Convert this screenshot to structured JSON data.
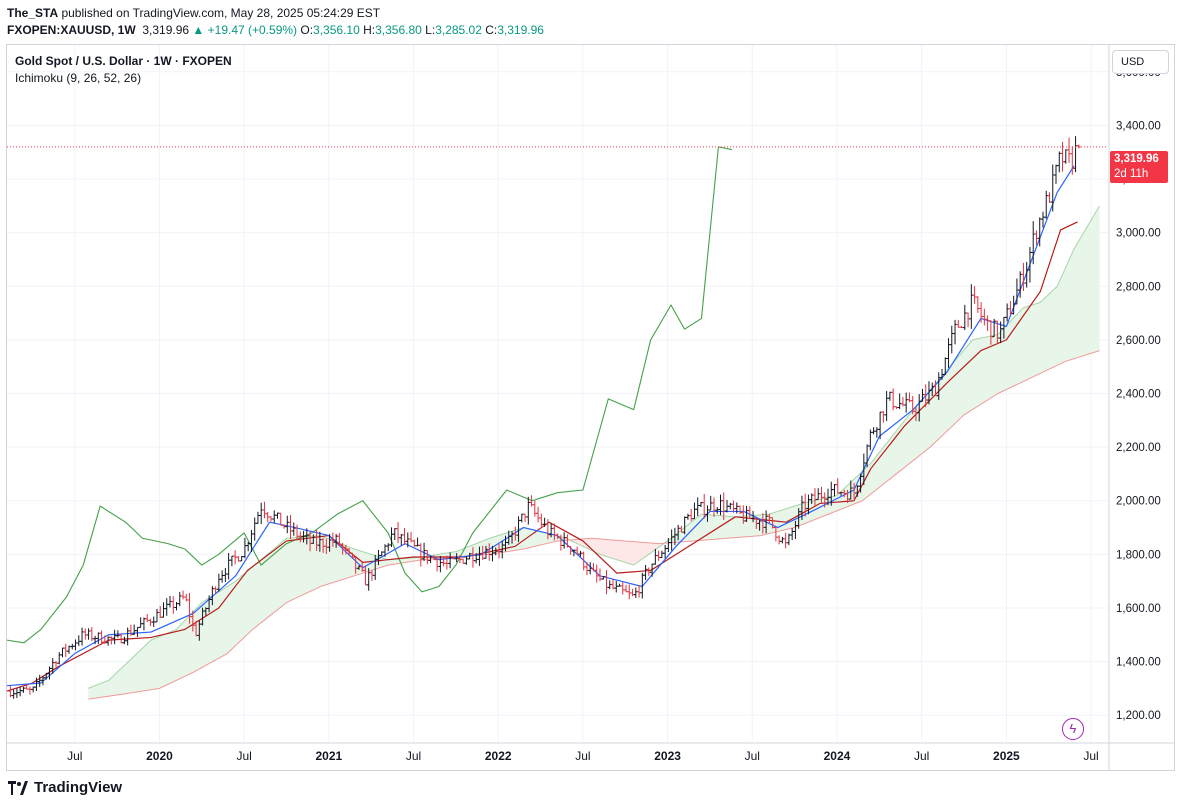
{
  "header": {
    "line1_user": "The_STA",
    "line1_rest": " published on TradingView.com, May 28, 2025 05:24:29 EST",
    "symbol": "FXOPEN:XAUUSD, 1W",
    "last": "3,319.96",
    "change": "▲ +19.47 (+0.59%)",
    "o_label": "O:",
    "o": "3,356.10",
    "h_label": "H:",
    "h": "3,356.80",
    "l_label": "L:",
    "l": "3,285.02",
    "c_label": "C:",
    "c": "3,319.96"
  },
  "legend": {
    "title": "Gold Spot / U.S. Dollar · 1W · FXOPEN",
    "indicator": "Ichimoku (9, 26, 52, 26)"
  },
  "currency": "USD",
  "price_tag": {
    "price": "3,319.96",
    "countdown": "2d 11h"
  },
  "brand": "TradingView",
  "colors": {
    "up": "#131722",
    "down": "#e0313f",
    "conversion": "#2962ff",
    "base": "#b71c1c",
    "lagging": "#43a047",
    "span_a": "#a5d6a7",
    "span_b": "#ef9a9a",
    "cloud_up": "#e8f5e9",
    "cloud_down": "#fde7e7",
    "last_price": "#f23645"
  },
  "chart_data": {
    "type": "candlestick",
    "title": "Gold Spot / U.S. Dollar · 1W · FXOPEN",
    "ylim": [
      1100,
      3700
    ],
    "y_ticks": [
      1200,
      1400,
      1600,
      1800,
      2000,
      2200,
      2400,
      2600,
      2800,
      3000,
      3200,
      3400,
      3600
    ],
    "y_tick_labels": [
      "1,200.00",
      "1,400.00",
      "1,600.00",
      "1,800.00",
      "2,000.00",
      "2,200.00",
      "2,400.00",
      "2,600.00",
      "2,800.00",
      "3,000.00",
      "3,200.00",
      "3,400.00",
      "3,600.00"
    ],
    "x_ticks": [
      {
        "t": 2019.5,
        "label": "Jul"
      },
      {
        "t": 2020.0,
        "label": "2020"
      },
      {
        "t": 2020.5,
        "label": "Jul"
      },
      {
        "t": 2021.0,
        "label": "2021"
      },
      {
        "t": 2021.5,
        "label": "Jul"
      },
      {
        "t": 2022.0,
        "label": "2022"
      },
      {
        "t": 2022.5,
        "label": "Jul"
      },
      {
        "t": 2023.0,
        "label": "2023"
      },
      {
        "t": 2023.5,
        "label": "Jul"
      },
      {
        "t": 2024.0,
        "label": "2024"
      },
      {
        "t": 2024.5,
        "label": "Jul"
      },
      {
        "t": 2025.0,
        "label": "2025"
      },
      {
        "t": 2025.5,
        "label": "Jul"
      }
    ],
    "xlim": [
      2019.1,
      2025.6
    ],
    "last_price": 3319.96,
    "price_path": [
      [
        2019.12,
        1290
      ],
      [
        2019.25,
        1290
      ],
      [
        2019.4,
        1420
      ],
      [
        2019.55,
        1500
      ],
      [
        2019.75,
        1480
      ],
      [
        2019.95,
        1560
      ],
      [
        2020.15,
        1640
      ],
      [
        2020.21,
        1500
      ],
      [
        2020.35,
        1720
      ],
      [
        2020.5,
        1820
      ],
      [
        2020.6,
        1980
      ],
      [
        2020.75,
        1900
      ],
      [
        2020.9,
        1840
      ],
      [
        2021.05,
        1850
      ],
      [
        2021.15,
        1760
      ],
      [
        2021.22,
        1700
      ],
      [
        2021.38,
        1880
      ],
      [
        2021.55,
        1800
      ],
      [
        2021.7,
        1760
      ],
      [
        2021.85,
        1800
      ],
      [
        2022.05,
        1830
      ],
      [
        2022.18,
        1980
      ],
      [
        2022.3,
        1880
      ],
      [
        2022.45,
        1820
      ],
      [
        2022.55,
        1730
      ],
      [
        2022.65,
        1680
      ],
      [
        2022.8,
        1640
      ],
      [
        2022.9,
        1760
      ],
      [
        2023.05,
        1880
      ],
      [
        2023.15,
        1960
      ],
      [
        2023.3,
        1990
      ],
      [
        2023.45,
        1940
      ],
      [
        2023.6,
        1920
      ],
      [
        2023.7,
        1830
      ],
      [
        2023.8,
        1980
      ],
      [
        2023.95,
        2040
      ],
      [
        2024.1,
        2030
      ],
      [
        2024.2,
        2250
      ],
      [
        2024.3,
        2380
      ],
      [
        2024.45,
        2340
      ],
      [
        2024.58,
        2420
      ],
      [
        2024.7,
        2640
      ],
      [
        2024.8,
        2740
      ],
      [
        2024.88,
        2660
      ],
      [
        2024.96,
        2620
      ],
      [
        2025.05,
        2760
      ],
      [
        2025.12,
        2880
      ],
      [
        2025.18,
        3020
      ],
      [
        2025.26,
        3150
      ],
      [
        2025.32,
        3280
      ],
      [
        2025.38,
        3260
      ],
      [
        2025.42,
        3320
      ]
    ],
    "tenkan": [
      [
        2019.1,
        1310
      ],
      [
        2019.3,
        1320
      ],
      [
        2019.5,
        1430
      ],
      [
        2019.7,
        1500
      ],
      [
        2019.95,
        1510
      ],
      [
        2020.2,
        1580
      ],
      [
        2020.45,
        1720
      ],
      [
        2020.65,
        1920
      ],
      [
        2020.8,
        1900
      ],
      [
        2021.0,
        1870
      ],
      [
        2021.2,
        1750
      ],
      [
        2021.45,
        1840
      ],
      [
        2021.65,
        1780
      ],
      [
        2021.9,
        1800
      ],
      [
        2022.15,
        1900
      ],
      [
        2022.35,
        1870
      ],
      [
        2022.6,
        1720
      ],
      [
        2022.85,
        1680
      ],
      [
        2023.05,
        1830
      ],
      [
        2023.25,
        1960
      ],
      [
        2023.45,
        1960
      ],
      [
        2023.65,
        1900
      ],
      [
        2023.85,
        1960
      ],
      [
        2024.1,
        2040
      ],
      [
        2024.25,
        2240
      ],
      [
        2024.45,
        2340
      ],
      [
        2024.65,
        2480
      ],
      [
        2024.85,
        2680
      ],
      [
        2025.0,
        2650
      ],
      [
        2025.15,
        2900
      ],
      [
        2025.3,
        3150
      ],
      [
        2025.4,
        3250
      ]
    ],
    "kijun": [
      [
        2019.1,
        1290
      ],
      [
        2019.25,
        1320
      ],
      [
        2019.4,
        1380
      ],
      [
        2019.7,
        1480
      ],
      [
        2019.95,
        1490
      ],
      [
        2020.15,
        1520
      ],
      [
        2020.35,
        1600
      ],
      [
        2020.52,
        1740
      ],
      [
        2020.75,
        1850
      ],
      [
        2021.0,
        1870
      ],
      [
        2021.2,
        1770
      ],
      [
        2021.5,
        1790
      ],
      [
        2021.8,
        1790
      ],
      [
        2022.1,
        1830
      ],
      [
        2022.3,
        1920
      ],
      [
        2022.5,
        1850
      ],
      [
        2022.7,
        1730
      ],
      [
        2022.9,
        1740
      ],
      [
        2023.1,
        1820
      ],
      [
        2023.4,
        1940
      ],
      [
        2023.7,
        1920
      ],
      [
        2023.9,
        1990
      ],
      [
        2024.1,
        2000
      ],
      [
        2024.2,
        2120
      ],
      [
        2024.4,
        2280
      ],
      [
        2024.65,
        2440
      ],
      [
        2024.85,
        2560
      ],
      [
        2025.0,
        2600
      ],
      [
        2025.2,
        2780
      ],
      [
        2025.32,
        3010
      ],
      [
        2025.42,
        3040
      ]
    ],
    "chikou": [
      [
        2019.1,
        1480
      ],
      [
        2019.2,
        1470
      ],
      [
        2019.3,
        1520
      ],
      [
        2019.45,
        1640
      ],
      [
        2019.55,
        1760
      ],
      [
        2019.65,
        1980
      ],
      [
        2019.8,
        1920
      ],
      [
        2019.9,
        1860
      ],
      [
        2020.05,
        1840
      ],
      [
        2020.15,
        1820
      ],
      [
        2020.25,
        1760
      ],
      [
        2020.35,
        1800
      ],
      [
        2020.5,
        1880
      ],
      [
        2020.6,
        1760
      ],
      [
        2020.75,
        1840
      ],
      [
        2020.9,
        1880
      ],
      [
        2021.05,
        1950
      ],
      [
        2021.2,
        2000
      ],
      [
        2021.35,
        1880
      ],
      [
        2021.45,
        1730
      ],
      [
        2021.55,
        1660
      ],
      [
        2021.65,
        1680
      ],
      [
        2021.75,
        1760
      ],
      [
        2021.85,
        1880
      ],
      [
        2022.05,
        2040
      ],
      [
        2022.2,
        2000
      ],
      [
        2022.35,
        2030
      ],
      [
        2022.5,
        2040
      ],
      [
        2022.65,
        2380
      ],
      [
        2022.8,
        2340
      ],
      [
        2022.9,
        2600
      ],
      [
        2023.02,
        2730
      ],
      [
        2023.1,
        2640
      ],
      [
        2023.2,
        2680
      ],
      [
        2023.3,
        3320
      ],
      [
        2023.38,
        3310
      ]
    ],
    "span_a": [
      [
        2019.58,
        1300
      ],
      [
        2019.7,
        1330
      ],
      [
        2019.85,
        1420
      ],
      [
        2019.95,
        1480
      ],
      [
        2020.1,
        1520
      ],
      [
        2020.25,
        1620
      ],
      [
        2020.45,
        1700
      ],
      [
        2020.6,
        1780
      ],
      [
        2020.75,
        1860
      ],
      [
        2020.95,
        1870
      ],
      [
        2021.15,
        1820
      ],
      [
        2021.35,
        1780
      ],
      [
        2021.55,
        1790
      ],
      [
        2021.75,
        1810
      ],
      [
        2021.95,
        1860
      ],
      [
        2022.15,
        1900
      ],
      [
        2022.4,
        1860
      ],
      [
        2022.6,
        1800
      ],
      [
        2022.8,
        1760
      ],
      [
        2023.0,
        1850
      ],
      [
        2023.2,
        1950
      ],
      [
        2023.4,
        1940
      ],
      [
        2023.6,
        1950
      ],
      [
        2023.8,
        1990
      ],
      [
        2024.0,
        2020
      ],
      [
        2024.2,
        2140
      ],
      [
        2024.4,
        2300
      ],
      [
        2024.6,
        2450
      ],
      [
        2024.8,
        2600
      ],
      [
        2024.95,
        2620
      ],
      [
        2025.1,
        2720
      ],
      [
        2025.2,
        2740
      ],
      [
        2025.3,
        2800
      ],
      [
        2025.4,
        2940
      ],
      [
        2025.55,
        3100
      ]
    ],
    "span_b": [
      [
        2019.58,
        1260
      ],
      [
        2019.8,
        1280
      ],
      [
        2020.0,
        1300
      ],
      [
        2020.2,
        1360
      ],
      [
        2020.4,
        1430
      ],
      [
        2020.55,
        1520
      ],
      [
        2020.75,
        1620
      ],
      [
        2020.95,
        1680
      ],
      [
        2021.15,
        1720
      ],
      [
        2021.35,
        1760
      ],
      [
        2021.55,
        1780
      ],
      [
        2021.75,
        1790
      ],
      [
        2021.95,
        1800
      ],
      [
        2022.15,
        1820
      ],
      [
        2022.35,
        1850
      ],
      [
        2022.55,
        1860
      ],
      [
        2022.75,
        1850
      ],
      [
        2022.95,
        1840
      ],
      [
        2023.15,
        1850
      ],
      [
        2023.35,
        1860
      ],
      [
        2023.55,
        1870
      ],
      [
        2023.75,
        1900
      ],
      [
        2023.95,
        1950
      ],
      [
        2024.15,
        2000
      ],
      [
        2024.35,
        2100
      ],
      [
        2024.55,
        2200
      ],
      [
        2024.75,
        2320
      ],
      [
        2024.95,
        2400
      ],
      [
        2025.15,
        2460
      ],
      [
        2025.35,
        2520
      ],
      [
        2025.55,
        2560
      ]
    ]
  }
}
